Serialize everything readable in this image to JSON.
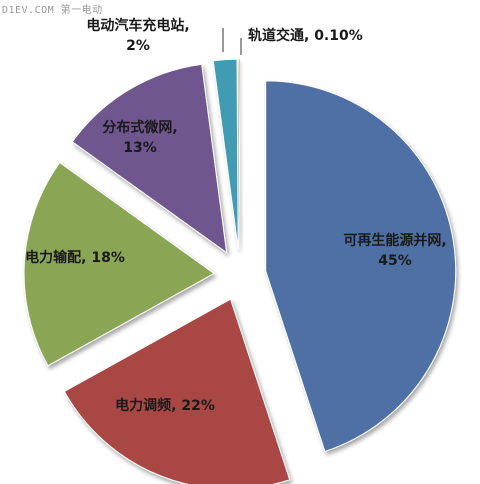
{
  "watermark": "D1EV.COM 第一电动",
  "chart_data": {
    "type": "pie",
    "title": "",
    "exploded": true,
    "slices": [
      {
        "label": "可再生能源并网",
        "value": 45,
        "value_text": "45%",
        "color": "#4f6fa5"
      },
      {
        "label": "电力调频",
        "value": 22,
        "value_text": "22%",
        "color": "#a94744"
      },
      {
        "label": "电力输配",
        "value": 18,
        "value_text": "18%",
        "color": "#8aa654"
      },
      {
        "label": "分布式微网",
        "value": 13,
        "value_text": "13%",
        "color": "#6f568f"
      },
      {
        "label": "电动汽车充电站",
        "value": 2,
        "value_text": "2%",
        "color": "#3f9bb3"
      },
      {
        "label": "轨道交通",
        "value": 0.1,
        "value_text": "0.10%",
        "color": "#d98c3c"
      }
    ]
  }
}
